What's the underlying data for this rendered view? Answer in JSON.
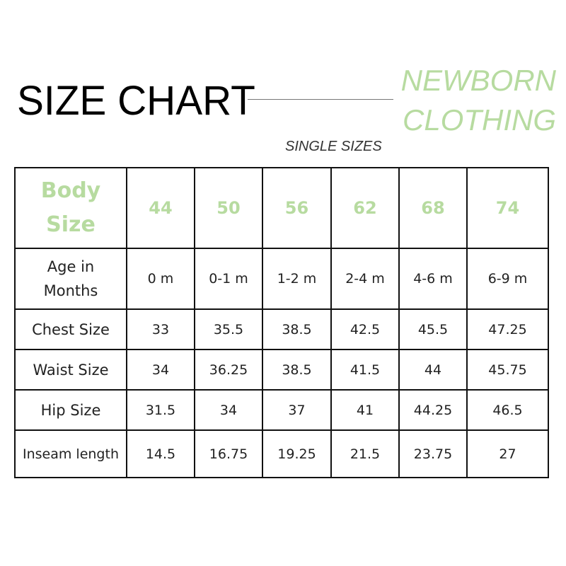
{
  "title": "SIZE CHART",
  "brand": {
    "line1": "NEWBORN",
    "line2": "CLOTHING"
  },
  "subtitle": "SINGLE SIZES",
  "accent_color": "#b7dba0",
  "table": {
    "header": {
      "label_line1": "Body",
      "label_line2": "Size",
      "sizes": [
        "44",
        "50",
        "56",
        "62",
        "68",
        "74"
      ]
    },
    "rows": [
      {
        "label_line1": "Age in",
        "label_line2": "Months",
        "values": [
          "0 m",
          "0-1 m",
          "1-2 m",
          "2-4 m",
          "4-6 m",
          "6-9 m"
        ]
      },
      {
        "label": "Chest Size",
        "values": [
          "33",
          "35.5",
          "38.5",
          "42.5",
          "45.5",
          "47.25"
        ]
      },
      {
        "label": "Waist Size",
        "values": [
          "34",
          "36.25",
          "38.5",
          "41.5",
          "44",
          "45.75"
        ]
      },
      {
        "label": "Hip Size",
        "values": [
          "31.5",
          "34",
          "37",
          "41",
          "44.25",
          "46.5"
        ]
      },
      {
        "label": "Inseam length",
        "values": [
          "14.5",
          "16.75",
          "19.25",
          "21.5",
          "23.75",
          "27"
        ]
      }
    ]
  }
}
